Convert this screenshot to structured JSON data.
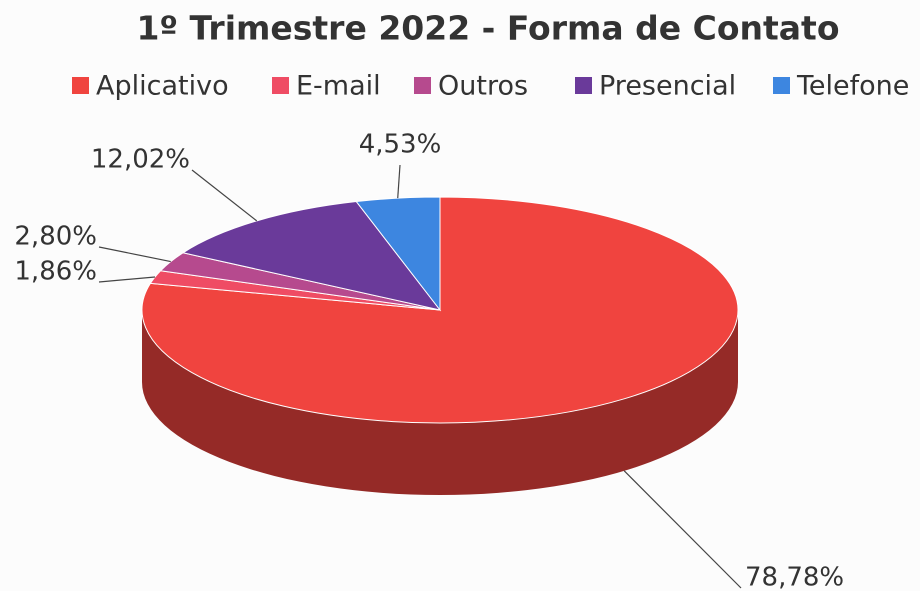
{
  "chart_data": {
    "type": "pie",
    "title": "1º Trimestre 2022 - Forma de Contato",
    "categories": [
      "Aplicativo",
      "E-mail",
      "Outros",
      "Presencial",
      "Telefone"
    ],
    "values": [
      78.78,
      1.86,
      2.8,
      12.02,
      4.53
    ],
    "value_labels": [
      "78,78%",
      "1,86%",
      "2,80%",
      "12,02%",
      "4,53%"
    ],
    "colors": [
      "#f0443f",
      "#ef4c64",
      "#b64a8e",
      "#6a3a9a",
      "#3d86e0"
    ],
    "legend": "top"
  }
}
